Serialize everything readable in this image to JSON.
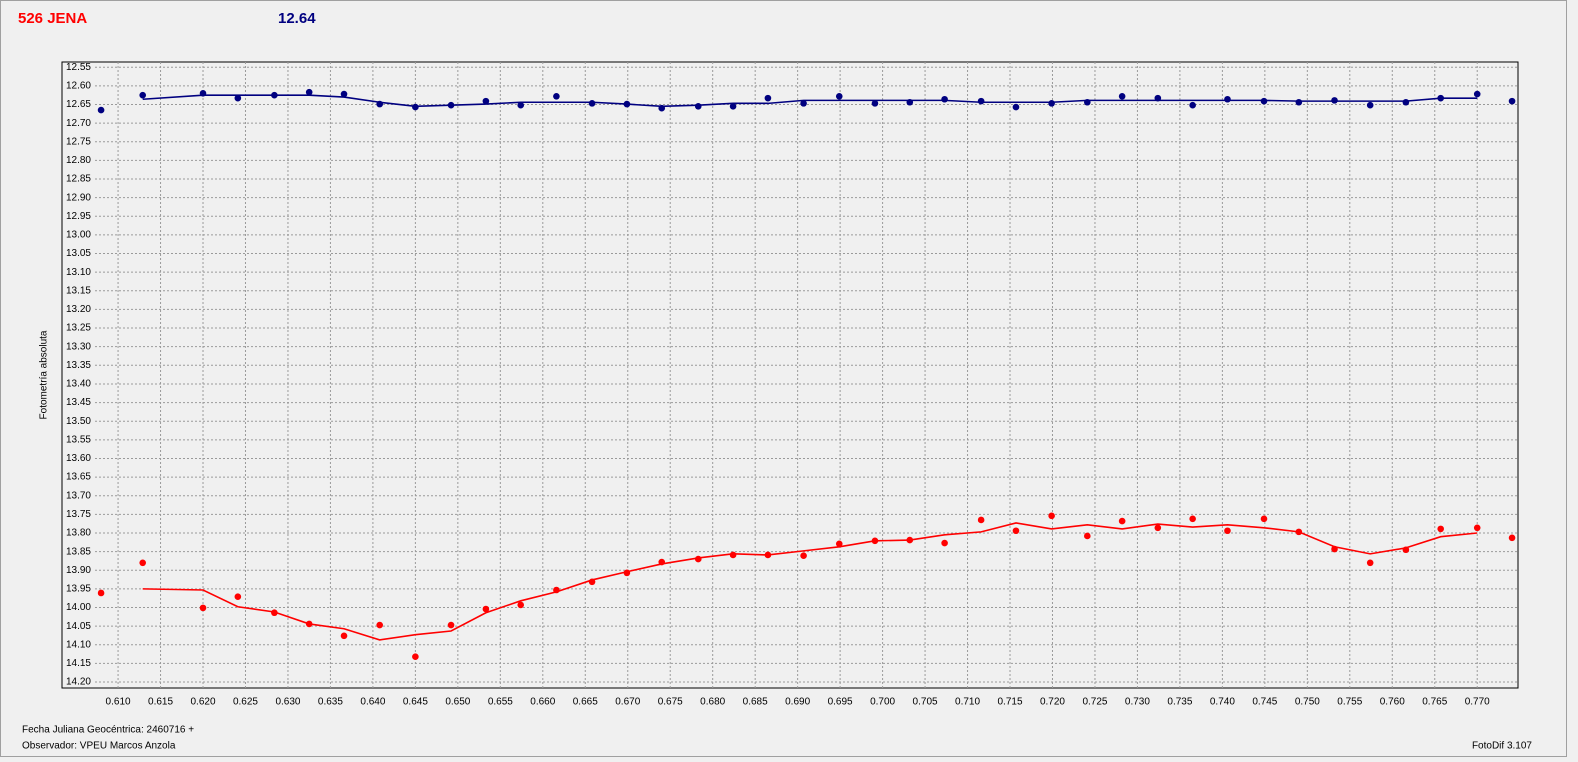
{
  "header": {
    "object": "526 JENA",
    "magnitude": "12.64"
  },
  "chart_data": {
    "type": "line",
    "y_label": "Fotometría absoluta",
    "x_note": "Fecha Juliana Geocéntrica: 2460716 +",
    "observer": "Observador: VPEU Marcos Anzola",
    "software": "FotoDif 3.107",
    "xlim": [
      0.6034,
      0.7748
    ],
    "ylim": [
      12.536,
      14.216
    ],
    "y_inverted": true,
    "grid": true,
    "xticks": [
      {
        "value": 0.61,
        "label": "0.610"
      },
      0.615,
      {
        "value": 0.62,
        "label": "0.620"
      },
      0.625,
      {
        "value": 0.63,
        "label": "0.630"
      },
      0.635,
      {
        "value": 0.64,
        "label": "0.640"
      },
      0.645,
      {
        "value": 0.65,
        "label": "0.650"
      },
      0.655,
      {
        "value": 0.66,
        "label": "0.660"
      },
      0.665,
      {
        "value": 0.67,
        "label": "0.670"
      },
      0.675,
      {
        "value": 0.68,
        "label": "0.680"
      },
      0.685,
      {
        "value": 0.69,
        "label": "0.690"
      },
      0.695,
      {
        "value": 0.7,
        "label": "0.700"
      },
      0.705,
      {
        "value": 0.71,
        "label": "0.710"
      },
      0.715,
      {
        "value": 0.72,
        "label": "0.720"
      },
      0.725,
      {
        "value": 0.73,
        "label": "0.730"
      },
      0.735,
      {
        "value": 0.74,
        "label": "0.740"
      },
      0.745,
      {
        "value": 0.75,
        "label": "0.750"
      },
      0.755,
      {
        "value": 0.76,
        "label": "0.760"
      },
      0.765,
      {
        "value": 0.77,
        "label": "0.770"
      }
    ],
    "yticks": [
      12.55,
      {
        "value": 12.6,
        "label": "12.60"
      },
      12.65,
      {
        "value": 12.7,
        "label": "12.70"
      },
      12.75,
      {
        "value": 12.8,
        "label": "12.80"
      },
      12.85,
      {
        "value": 12.9,
        "label": "12.90"
      },
      12.95,
      {
        "value": 13,
        "label": "13.00"
      },
      13.05,
      {
        "value": 13.1,
        "label": "13.10"
      },
      13.15,
      {
        "value": 13.2,
        "label": "13.20"
      },
      13.25,
      {
        "value": 13.3,
        "label": "13.30"
      },
      13.35,
      {
        "value": 13.4,
        "label": "13.40"
      },
      13.45,
      {
        "value": 13.5,
        "label": "13.50"
      },
      13.55,
      {
        "value": 13.6,
        "label": "13.60"
      },
      13.65,
      {
        "value": 13.7,
        "label": "13.70"
      },
      13.75,
      {
        "value": 13.8,
        "label": "13.80"
      },
      13.85,
      {
        "value": 13.9,
        "label": "13.90"
      },
      13.95,
      {
        "value": 14,
        "label": "14.00"
      },
      14.05,
      {
        "value": 14.1,
        "label": "14.10"
      },
      14.15,
      {
        "value": 14.2,
        "label": "14.20"
      }
    ],
    "series": [
      {
        "color": "#000080",
        "mode": "markers",
        "x": [
          0.608,
          0.6129,
          0.62,
          0.6241,
          0.6284,
          0.6325,
          0.6366,
          0.6408,
          0.645,
          0.6492,
          0.6533,
          0.6574,
          0.6616,
          0.6658,
          0.6699,
          0.674,
          0.6783,
          0.6824,
          0.6865,
          0.6907,
          0.6949,
          0.6991,
          0.7032,
          0.7073,
          0.7116,
          0.7157,
          0.7199,
          0.7241,
          0.7282,
          0.7324,
          0.7365,
          0.7406,
          0.7449,
          0.749,
          0.7532,
          0.7574,
          0.7616,
          0.7657,
          0.77,
          0.7741
        ],
        "values": [
          12.665,
          12.625,
          12.62,
          12.633,
          12.625,
          12.617,
          12.622,
          12.649,
          12.657,
          12.652,
          12.641,
          12.652,
          12.628,
          12.647,
          12.649,
          12.66,
          12.655,
          12.655,
          12.633,
          12.647,
          12.628,
          12.647,
          12.644,
          12.636,
          12.641,
          12.657,
          12.647,
          12.644,
          12.628,
          12.633,
          12.652,
          12.636,
          12.641,
          12.644,
          12.639,
          12.652,
          12.644,
          12.633,
          12.622,
          12.641
        ]
      },
      {
        "color": "#000080",
        "mode": "line",
        "x": [
          0.6129,
          0.62,
          0.6241,
          0.6284,
          0.6325,
          0.6366,
          0.6408,
          0.645,
          0.6492,
          0.6533,
          0.6574,
          0.6616,
          0.6658,
          0.6699,
          0.674,
          0.6783,
          0.6824,
          0.6865,
          0.6907,
          0.6949,
          0.6991,
          0.7032,
          0.7073,
          0.7116,
          0.7157,
          0.7199,
          0.7241,
          0.7282,
          0.7324,
          0.7365,
          0.7406,
          0.7449,
          0.749,
          0.7532,
          0.7574,
          0.7616,
          0.7657,
          0.77
        ],
        "values": [
          12.636,
          12.625,
          12.625,
          12.625,
          12.625,
          12.63,
          12.644,
          12.655,
          12.652,
          12.649,
          12.644,
          12.644,
          12.644,
          12.649,
          12.655,
          12.652,
          12.647,
          12.647,
          12.639,
          12.639,
          12.639,
          12.639,
          12.639,
          12.644,
          12.644,
          12.644,
          12.639,
          12.639,
          12.639,
          12.639,
          12.639,
          12.639,
          12.641,
          12.641,
          12.641,
          12.641,
          12.633,
          12.633
        ]
      },
      {
        "color": "#ff0000",
        "mode": "markers",
        "x": [
          0.608,
          0.6129,
          0.62,
          0.6241,
          0.6284,
          0.6325,
          0.6366,
          0.6408,
          0.645,
          0.6492,
          0.6533,
          0.6574,
          0.6616,
          0.6658,
          0.6699,
          0.674,
          0.6783,
          0.6824,
          0.6865,
          0.6907,
          0.6949,
          0.6991,
          0.7032,
          0.7073,
          0.7116,
          0.7157,
          0.7199,
          0.7241,
          0.7282,
          0.7324,
          0.7365,
          0.7406,
          0.7449,
          0.749,
          0.7532,
          0.7574,
          0.7616,
          0.7657,
          0.77,
          0.7741
        ],
        "values": [
          13.961,
          13.88,
          14.001,
          13.971,
          14.014,
          14.044,
          14.076,
          14.047,
          14.132,
          14.047,
          14.004,
          13.993,
          13.953,
          13.931,
          13.907,
          13.878,
          13.87,
          13.859,
          13.859,
          13.861,
          13.829,
          13.821,
          13.819,
          13.827,
          13.765,
          13.794,
          13.754,
          13.808,
          13.768,
          13.786,
          13.762,
          13.794,
          13.762,
          13.797,
          13.843,
          13.88,
          13.845,
          13.789,
          13.786,
          13.813
        ]
      },
      {
        "color": "#ff0000",
        "mode": "line",
        "x": [
          0.6129,
          0.62,
          0.6241,
          0.6284,
          0.6325,
          0.6366,
          0.6408,
          0.645,
          0.6492,
          0.6533,
          0.6574,
          0.6616,
          0.6658,
          0.6699,
          0.674,
          0.6783,
          0.6824,
          0.6865,
          0.6907,
          0.6949,
          0.6991,
          0.7032,
          0.7073,
          0.7116,
          0.7157,
          0.7199,
          0.7241,
          0.7282,
          0.7324,
          0.7365,
          0.7406,
          0.7449,
          0.749,
          0.7532,
          0.7574,
          0.7616,
          0.7657,
          0.77
        ],
        "values": [
          13.95,
          13.953,
          13.998,
          14.012,
          14.044,
          14.057,
          14.087,
          14.073,
          14.063,
          14.014,
          13.982,
          13.958,
          13.926,
          13.904,
          13.883,
          13.867,
          13.856,
          13.859,
          13.848,
          13.837,
          13.821,
          13.819,
          13.805,
          13.797,
          13.773,
          13.789,
          13.778,
          13.789,
          13.776,
          13.784,
          13.778,
          13.786,
          13.797,
          13.837,
          13.856,
          13.84,
          13.81,
          13.8
        ]
      }
    ]
  }
}
